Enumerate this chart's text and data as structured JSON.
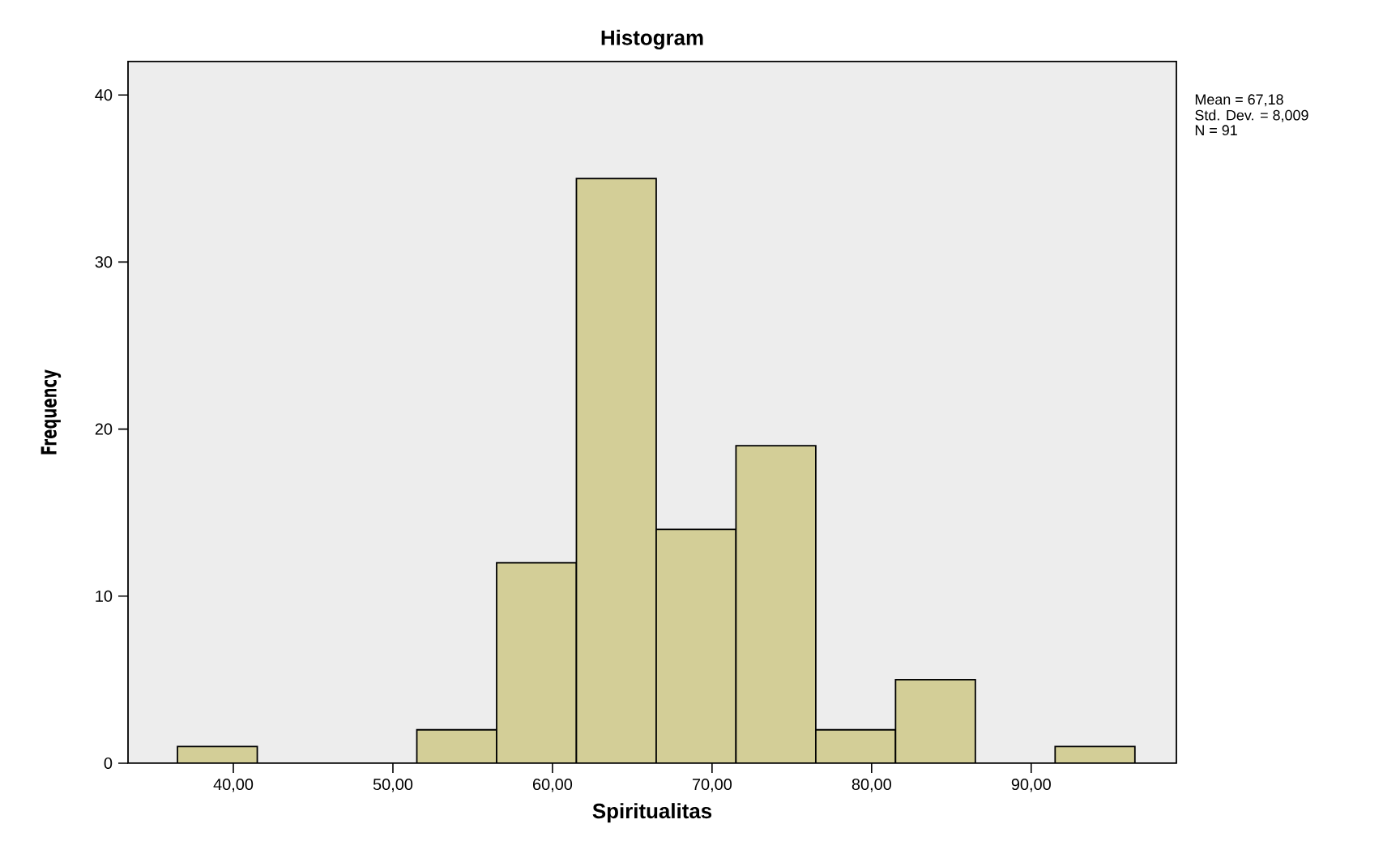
{
  "chart_data": {
    "type": "histogram",
    "title": "Histogram",
    "xlabel": "Spiritualitas",
    "ylabel": "Frequency",
    "bins": [
      36.5,
      41.5,
      46.5,
      51.5,
      56.5,
      61.5,
      66.5,
      71.5,
      76.5,
      81.5,
      86.5,
      91.5,
      96.5
    ],
    "values": [
      1,
      0,
      0,
      2,
      12,
      35,
      14,
      19,
      2,
      5,
      0,
      1
    ],
    "color": "#d3ce97",
    "xlim": [
      33.4,
      99.1
    ],
    "ylim": [
      0,
      42
    ],
    "xticks": [
      {
        "value": 40,
        "label": "40,00"
      },
      {
        "value": 50,
        "label": "50,00"
      },
      {
        "value": 60,
        "label": "60,00"
      },
      {
        "value": 70,
        "label": "70,00"
      },
      {
        "value": 80,
        "label": "80,00"
      },
      {
        "value": 90,
        "label": "90,00"
      }
    ],
    "yticks": [
      0,
      10,
      20,
      30,
      40
    ],
    "annotations": [
      "Mean = 67,18",
      "Std. Dev. = 8,009",
      "N = 91"
    ],
    "grid": false
  }
}
